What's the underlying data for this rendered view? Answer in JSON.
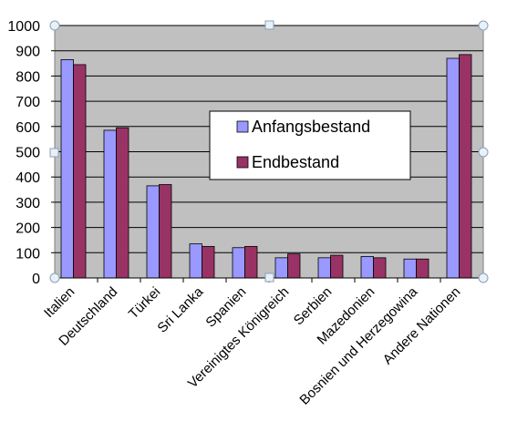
{
  "chart_data": {
    "type": "bar",
    "categories": [
      "Italien",
      "Deutschland",
      "Türkei",
      "Sri Lanka",
      "Spanien",
      "Vereinigtes Königreich",
      "Serbien",
      "Mazedonien",
      "Bosnien und Herzegowina",
      "Andere Nationen"
    ],
    "series": [
      {
        "name": "Anfangsbestand",
        "color": "#9999ff",
        "values": [
          865,
          585,
          365,
          135,
          120,
          80,
          80,
          85,
          75,
          870
        ]
      },
      {
        "name": "Endbestand",
        "color": "#993366",
        "values": [
          845,
          595,
          370,
          125,
          125,
          95,
          90,
          80,
          75,
          885
        ]
      }
    ],
    "yticks": [
      "0",
      "100",
      "200",
      "300",
      "400",
      "500",
      "600",
      "700",
      "800",
      "900",
      "1000"
    ],
    "ylim": [
      0,
      1000
    ],
    "grid": true,
    "plot_background": "#c0c0c0",
    "legend_position": "center-right",
    "title": "",
    "xlabel": "",
    "ylabel": ""
  }
}
